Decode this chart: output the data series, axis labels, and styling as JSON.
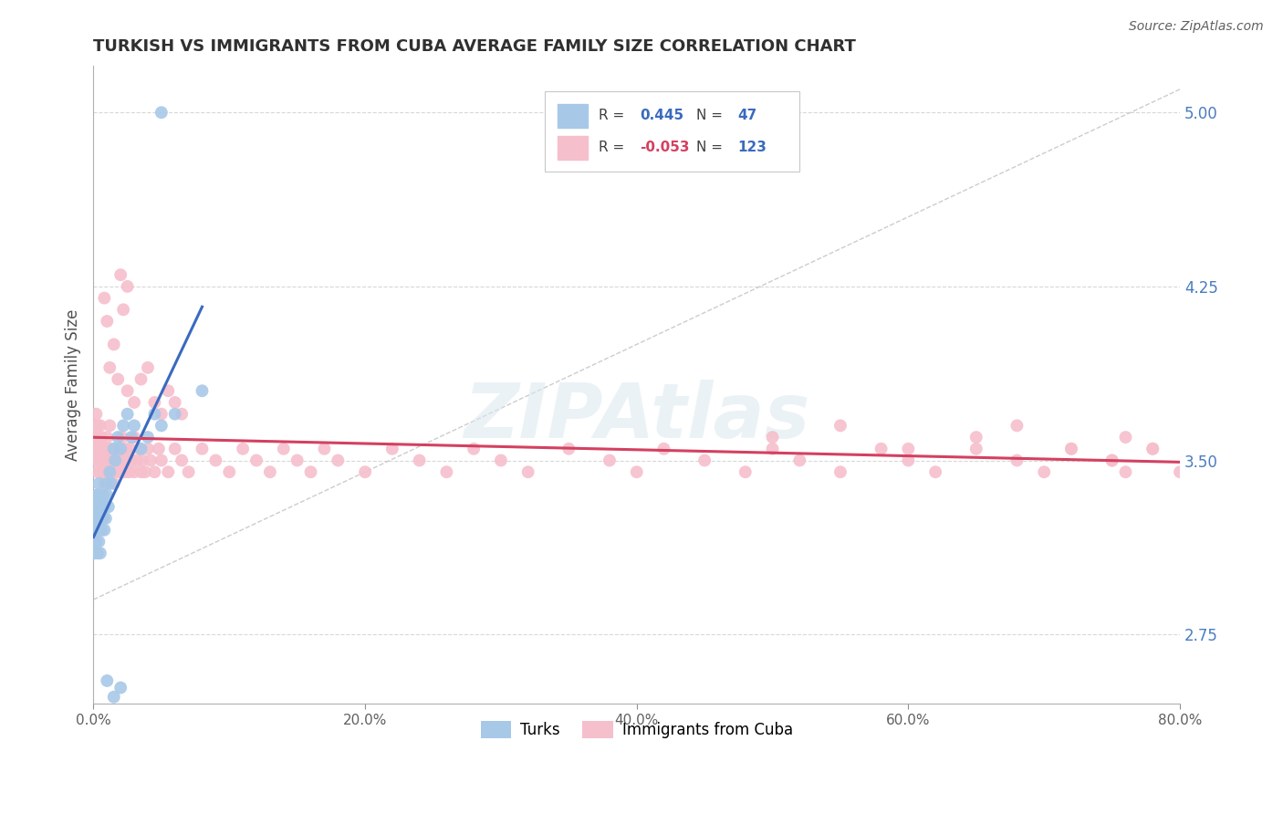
{
  "title": "TURKISH VS IMMIGRANTS FROM CUBA AVERAGE FAMILY SIZE CORRELATION CHART",
  "source": "Source: ZipAtlas.com",
  "ylabel": "Average Family Size",
  "xlim": [
    0.0,
    0.8
  ],
  "ylim": [
    2.45,
    5.2
  ],
  "yticks": [
    2.75,
    3.5,
    4.25,
    5.0
  ],
  "xticks": [
    0.0,
    0.2,
    0.4,
    0.6,
    0.8
  ],
  "xticklabels": [
    "0.0%",
    "20.0%",
    "40.0%",
    "60.0%",
    "80.0%"
  ],
  "turks_R": 0.445,
  "turks_N": 47,
  "cuba_R": -0.053,
  "cuba_N": 123,
  "turks_color": "#a8c8e8",
  "turks_edge_color": "#7aaed4",
  "turks_line_color": "#3a6abf",
  "cuba_color": "#f5bfcc",
  "cuba_edge_color": "#e896aa",
  "cuba_line_color": "#d44060",
  "ref_line_color": "#c0c0c0",
  "background_color": "#ffffff",
  "grid_color": "#d8d8d8",
  "title_color": "#303030",
  "axis_label_color": "#505050",
  "right_axis_color": "#4a7cc0",
  "legend_R_color_turks": "#3a6abf",
  "legend_R_color_cuba": "#d44060",
  "legend_N_color": "#3a6abf",
  "watermark_color": "#e0e8f0",
  "turks_x": [
    0.001,
    0.001,
    0.001,
    0.002,
    0.002,
    0.002,
    0.002,
    0.003,
    0.003,
    0.003,
    0.003,
    0.004,
    0.004,
    0.004,
    0.005,
    0.005,
    0.005,
    0.006,
    0.006,
    0.007,
    0.007,
    0.008,
    0.008,
    0.009,
    0.01,
    0.01,
    0.011,
    0.012,
    0.013,
    0.015,
    0.016,
    0.018,
    0.02,
    0.022,
    0.025,
    0.028,
    0.03,
    0.035,
    0.04,
    0.045,
    0.05,
    0.06,
    0.08,
    0.01,
    0.015,
    0.02,
    0.05
  ],
  "turks_y": [
    3.2,
    3.3,
    3.1,
    3.15,
    3.25,
    3.35,
    3.2,
    3.1,
    3.25,
    3.35,
    3.2,
    3.15,
    3.3,
    3.4,
    3.1,
    3.25,
    3.35,
    3.2,
    3.3,
    3.25,
    3.35,
    3.3,
    3.2,
    3.25,
    3.35,
    3.4,
    3.3,
    3.45,
    3.4,
    3.55,
    3.5,
    3.6,
    3.55,
    3.65,
    3.7,
    3.6,
    3.65,
    3.55,
    3.6,
    3.7,
    3.65,
    3.7,
    3.8,
    2.55,
    2.48,
    2.52,
    5.0
  ],
  "cuba_x": [
    0.001,
    0.001,
    0.002,
    0.002,
    0.002,
    0.003,
    0.003,
    0.003,
    0.004,
    0.004,
    0.005,
    0.005,
    0.005,
    0.006,
    0.006,
    0.007,
    0.007,
    0.008,
    0.008,
    0.009,
    0.01,
    0.01,
    0.011,
    0.012,
    0.012,
    0.013,
    0.014,
    0.015,
    0.015,
    0.016,
    0.017,
    0.018,
    0.019,
    0.02,
    0.02,
    0.021,
    0.022,
    0.023,
    0.024,
    0.025,
    0.026,
    0.027,
    0.028,
    0.03,
    0.03,
    0.032,
    0.034,
    0.035,
    0.036,
    0.038,
    0.04,
    0.042,
    0.045,
    0.048,
    0.05,
    0.055,
    0.06,
    0.065,
    0.07,
    0.08,
    0.09,
    0.1,
    0.11,
    0.12,
    0.13,
    0.14,
    0.15,
    0.16,
    0.17,
    0.18,
    0.2,
    0.22,
    0.24,
    0.26,
    0.28,
    0.3,
    0.32,
    0.35,
    0.38,
    0.4,
    0.42,
    0.45,
    0.48,
    0.5,
    0.52,
    0.55,
    0.58,
    0.6,
    0.62,
    0.65,
    0.68,
    0.7,
    0.72,
    0.75,
    0.76,
    0.78,
    0.025,
    0.03,
    0.035,
    0.04,
    0.045,
    0.05,
    0.055,
    0.06,
    0.065,
    0.008,
    0.01,
    0.012,
    0.015,
    0.018,
    0.02,
    0.022,
    0.025,
    0.5,
    0.55,
    0.6,
    0.65,
    0.68,
    0.72,
    0.75,
    0.76,
    0.78,
    0.8
  ],
  "cuba_y": [
    3.55,
    3.65,
    3.5,
    3.6,
    3.7,
    3.45,
    3.55,
    3.65,
    3.5,
    3.6,
    3.55,
    3.45,
    3.65,
    3.5,
    3.6,
    3.45,
    3.55,
    3.5,
    3.4,
    3.55,
    3.6,
    3.5,
    3.45,
    3.55,
    3.65,
    3.5,
    3.45,
    3.55,
    3.4,
    3.5,
    3.45,
    3.55,
    3.5,
    3.45,
    3.55,
    3.6,
    3.5,
    3.45,
    3.55,
    3.5,
    3.45,
    3.55,
    3.5,
    3.6,
    3.45,
    3.5,
    3.55,
    3.45,
    3.5,
    3.45,
    3.55,
    3.5,
    3.45,
    3.55,
    3.5,
    3.45,
    3.55,
    3.5,
    3.45,
    3.55,
    3.5,
    3.45,
    3.55,
    3.5,
    3.45,
    3.55,
    3.5,
    3.45,
    3.55,
    3.5,
    3.45,
    3.55,
    3.5,
    3.45,
    3.55,
    3.5,
    3.45,
    3.55,
    3.5,
    3.45,
    3.55,
    3.5,
    3.45,
    3.55,
    3.5,
    3.45,
    3.55,
    3.5,
    3.45,
    3.55,
    3.5,
    3.45,
    3.55,
    3.5,
    3.45,
    3.55,
    3.8,
    3.75,
    3.85,
    3.9,
    3.75,
    3.7,
    3.8,
    3.75,
    3.7,
    4.2,
    4.1,
    3.9,
    4.0,
    3.85,
    4.3,
    4.15,
    4.25,
    3.6,
    3.65,
    3.55,
    3.6,
    3.65,
    3.55,
    3.5,
    3.6,
    3.55,
    3.45
  ]
}
